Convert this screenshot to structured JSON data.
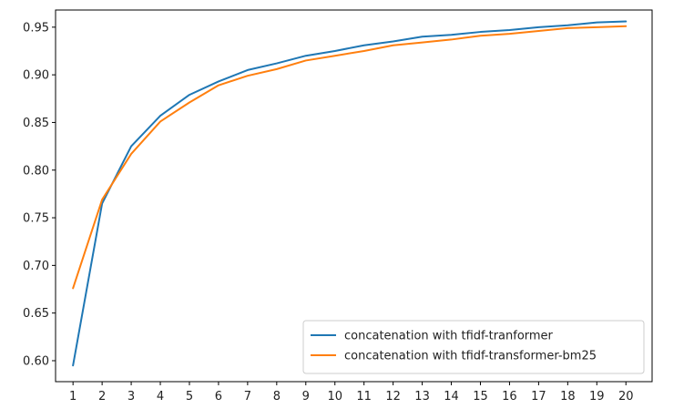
{
  "chart_data": {
    "type": "line",
    "title": "",
    "xlabel": "",
    "ylabel": "",
    "x": [
      1,
      2,
      3,
      4,
      5,
      6,
      7,
      8,
      9,
      10,
      11,
      12,
      13,
      14,
      15,
      16,
      17,
      18,
      19,
      20
    ],
    "xlim": [
      0.4,
      20.9
    ],
    "ylim": [
      0.578,
      0.968
    ],
    "yticks": [
      0.6,
      0.65,
      0.7,
      0.75,
      0.8,
      0.85,
      0.9,
      0.95
    ],
    "ytick_labels": [
      "0.60",
      "0.65",
      "0.70",
      "0.75",
      "0.80",
      "0.85",
      "0.90",
      "0.95"
    ],
    "xticks": [
      1,
      2,
      3,
      4,
      5,
      6,
      7,
      8,
      9,
      10,
      11,
      12,
      13,
      14,
      15,
      16,
      17,
      18,
      19,
      20
    ],
    "xtick_labels": [
      "1",
      "2",
      "3",
      "4",
      "5",
      "6",
      "7",
      "8",
      "9",
      "10",
      "11",
      "12",
      "13",
      "14",
      "15",
      "16",
      "17",
      "18",
      "19",
      "20"
    ],
    "grid": false,
    "legend_position": "lower-right",
    "series": [
      {
        "name": "concatenation with tfidf-tranformer",
        "color": "#1f77b4",
        "values": [
          0.595,
          0.765,
          0.825,
          0.857,
          0.879,
          0.893,
          0.905,
          0.912,
          0.92,
          0.925,
          0.931,
          0.935,
          0.94,
          0.942,
          0.945,
          0.947,
          0.95,
          0.952,
          0.955,
          0.956
        ]
      },
      {
        "name": "concatenation with tfidf-transformer-bm25",
        "color": "#ff7f0e",
        "values": [
          0.676,
          0.769,
          0.817,
          0.851,
          0.871,
          0.889,
          0.899,
          0.906,
          0.915,
          0.92,
          0.925,
          0.931,
          0.934,
          0.937,
          0.941,
          0.943,
          0.946,
          0.949,
          0.95,
          0.951
        ]
      }
    ]
  }
}
